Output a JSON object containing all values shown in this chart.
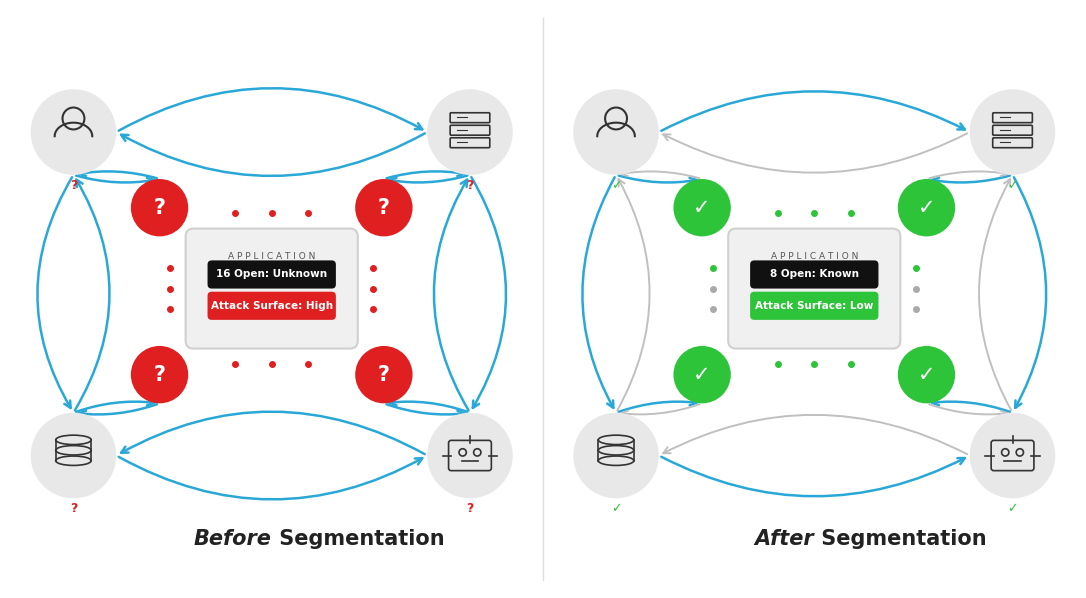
{
  "bg_color": "#ffffff",
  "before_title_italic": "Before",
  "before_title_normal": " Segmentation",
  "after_title_italic": "After",
  "after_title_normal": " Segmentation",
  "app_label": "A P P L I C A T I O N",
  "before_line1": "16 Open: Unknown",
  "before_line2": "Attack Surface: High",
  "after_line1": "8 Open: Known",
  "after_line2": "Attack Surface: Low",
  "blue_arrow": "#29a8d8",
  "red_dot": "#e02020",
  "green_dot": "#2dc43a",
  "red_circle": "#e02020",
  "green_circle": "#2dc43a",
  "gray_circle_bg": "#e8e8e8",
  "gray_arrow": "#c0c0c0",
  "icon_color": "#333333",
  "title_fontsize": 15,
  "app_label_fontsize": 7,
  "badge_fontsize": 8
}
